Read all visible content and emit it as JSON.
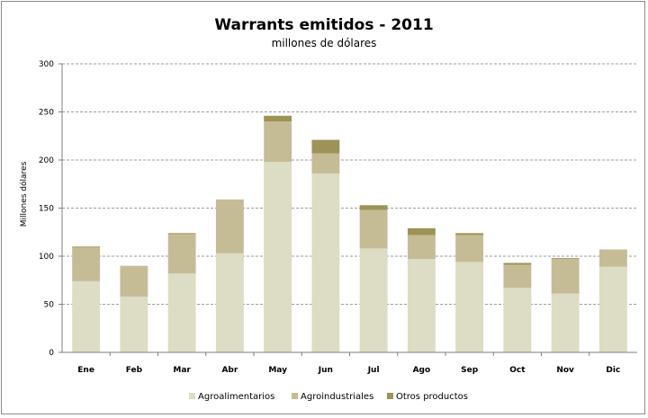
{
  "chart_data": {
    "type": "bar",
    "stacked": true,
    "title": "Warrants emitidos  - 2011",
    "subtitle": "millones de dólares",
    "xlabel": "",
    "ylabel": "Millones dólares",
    "ylim": [
      0,
      300
    ],
    "yticks": [
      0,
      50,
      100,
      150,
      200,
      250,
      300
    ],
    "grid": true,
    "legend_position": "bottom",
    "categories": [
      "Ene",
      "Feb",
      "Mar",
      "Abr",
      "May",
      "Jun",
      "Jul",
      "Ago",
      "Sep",
      "Oct",
      "Nov",
      "Dic"
    ],
    "series": [
      {
        "name": "Agroalimentarios",
        "color": "#dddcc4",
        "values": [
          74,
          58,
          82,
          103,
          198,
          186,
          108,
          97,
          94,
          67,
          61,
          89
        ]
      },
      {
        "name": "Agroindustriales",
        "color": "#c5bc96",
        "values": [
          35,
          32,
          41,
          56,
          42,
          21,
          40,
          25,
          28,
          24,
          36,
          18
        ]
      },
      {
        "name": "Otros productos",
        "color": "#9d9357",
        "values": [
          1,
          0,
          1,
          0,
          6,
          14,
          5,
          7,
          2,
          2,
          1,
          0
        ]
      }
    ]
  }
}
